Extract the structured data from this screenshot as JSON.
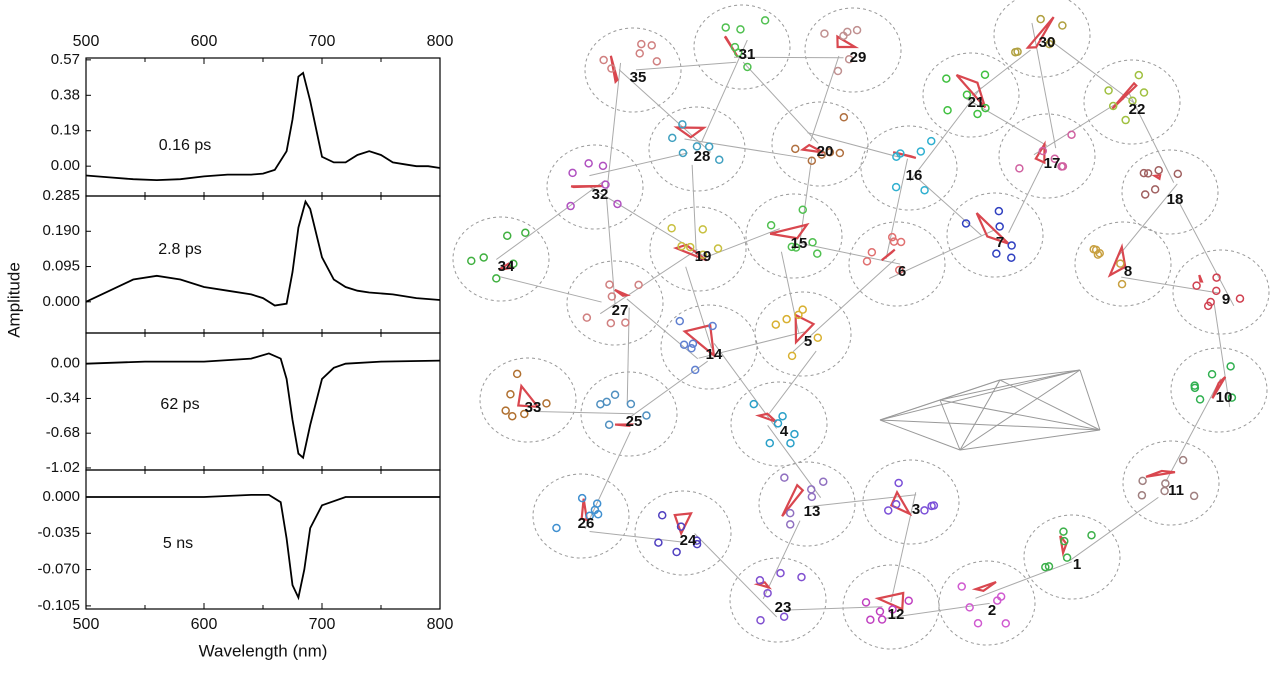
{
  "figure": {
    "ylabel": "Amplitude"
  },
  "chart_data": [
    {
      "type": "line",
      "annotation": "0.16 ps",
      "color": "#000000",
      "x": [
        500,
        520,
        540,
        560,
        580,
        600,
        620,
        640,
        650,
        660,
        670,
        675,
        680,
        684,
        690,
        700,
        710,
        720,
        730,
        740,
        750,
        760,
        770,
        780,
        790,
        800
      ],
      "values": [
        -0.05,
        -0.06,
        -0.07,
        -0.075,
        -0.07,
        -0.055,
        -0.045,
        -0.045,
        -0.04,
        -0.02,
        0.08,
        0.25,
        0.48,
        0.5,
        0.35,
        0.05,
        0.02,
        0.02,
        0.06,
        0.08,
        0.06,
        0.02,
        0.01,
        0.0,
        0.0,
        -0.01
      ],
      "xlim": [
        500,
        800
      ],
      "xticks": [
        500,
        600,
        700,
        800
      ],
      "ylim": [
        -0.16,
        0.58
      ],
      "yticks": [
        {
          "value": 0,
          "label": "0.00"
        },
        {
          "value": 0.19,
          "label": "0.19"
        },
        {
          "value": 0.38,
          "label": "0.38"
        },
        {
          "value": 0.57,
          "label": "0.57"
        }
      ]
    },
    {
      "type": "line",
      "annotation": "2.8 ps",
      "color": "#000000",
      "x": [
        500,
        520,
        540,
        560,
        580,
        600,
        620,
        640,
        650,
        660,
        670,
        675,
        680,
        686,
        690,
        700,
        710,
        720,
        730,
        740,
        760,
        780,
        800
      ],
      "values": [
        0.0,
        0.03,
        0.06,
        0.07,
        0.06,
        0.04,
        0.03,
        0.02,
        0.01,
        -0.01,
        -0.005,
        0.08,
        0.2,
        0.27,
        0.25,
        0.12,
        0.06,
        0.04,
        0.03,
        0.025,
        0.02,
        0.01,
        0.005
      ],
      "xlim": [
        500,
        800
      ],
      "ylim": [
        -0.084,
        0.285
      ],
      "yticks": [
        {
          "value": 0,
          "label": "0.000"
        },
        {
          "value": 0.095,
          "label": "0.095"
        },
        {
          "value": 0.19,
          "label": "0.190"
        },
        {
          "value": 0.285,
          "label": "0.285"
        }
      ]
    },
    {
      "type": "line",
      "annotation": "62 ps",
      "color": "#000000",
      "x": [
        500,
        550,
        600,
        640,
        655,
        665,
        670,
        675,
        680,
        684,
        690,
        700,
        710,
        720,
        750,
        800
      ],
      "values": [
        0.0,
        0.02,
        0.02,
        0.05,
        0.1,
        0.05,
        -0.15,
        -0.55,
        -0.88,
        -0.92,
        -0.6,
        -0.15,
        -0.04,
        0.0,
        0.02,
        0.03
      ],
      "xlim": [
        500,
        800
      ],
      "ylim": [
        -1.04,
        0.3
      ],
      "yticks": [
        {
          "value": 0,
          "label": "0.00"
        },
        {
          "value": -0.34,
          "label": "-0.34"
        },
        {
          "value": -0.68,
          "label": "-0.68"
        },
        {
          "value": -1.02,
          "label": "-1.02"
        }
      ]
    },
    {
      "type": "line",
      "annotation": "5 ns",
      "color": "#000000",
      "x": [
        500,
        550,
        600,
        640,
        655,
        665,
        670,
        675,
        680,
        685,
        690,
        700,
        720,
        760,
        800
      ],
      "values": [
        0.0,
        0.0,
        0.0,
        0.002,
        0.002,
        -0.005,
        -0.04,
        -0.085,
        -0.097,
        -0.07,
        -0.03,
        -0.008,
        0.0,
        0.0,
        0.0
      ],
      "xlim": [
        500,
        800
      ],
      "xticks": [
        500,
        600,
        700,
        800
      ],
      "xlabel": "Wavelength (nm)",
      "ylim": [
        -0.108,
        0.026
      ],
      "yticks": [
        {
          "value": 0,
          "label": "0.000"
        },
        {
          "value": -0.035,
          "label": "-0.035"
        },
        {
          "value": -0.07,
          "label": "-0.070"
        },
        {
          "value": -0.105,
          "label": "-0.105"
        }
      ]
    }
  ],
  "network": {
    "labels": [
      "1",
      "2",
      "3",
      "4",
      "5",
      "6",
      "7",
      "8",
      "9",
      "10",
      "11",
      "12",
      "13",
      "14",
      "15",
      "16",
      "17",
      "18",
      "19",
      "20",
      "21",
      "22",
      "23",
      "24",
      "25",
      "26",
      "27",
      "28",
      "29",
      "30",
      "31",
      "32",
      "33",
      "34",
      "35"
    ]
  }
}
